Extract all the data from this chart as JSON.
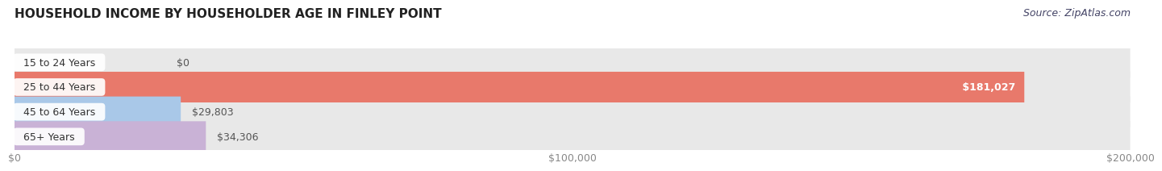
{
  "title": "HOUSEHOLD INCOME BY HOUSEHOLDER AGE IN FINLEY POINT",
  "source": "Source: ZipAtlas.com",
  "categories": [
    "15 to 24 Years",
    "25 to 44 Years",
    "45 to 64 Years",
    "65+ Years"
  ],
  "values": [
    0,
    181027,
    29803,
    34306
  ],
  "bar_colors": [
    "#f2c497",
    "#e8796b",
    "#a9c8e8",
    "#c9b2d6"
  ],
  "background_color": "#ffffff",
  "bar_bg_color": "#e8e8e8",
  "xlim": [
    0,
    200000
  ],
  "xticks": [
    0,
    100000,
    200000
  ],
  "xtick_labels": [
    "$0",
    "$100,000",
    "$200,000"
  ],
  "value_labels": [
    "$0",
    "$181,027",
    "$29,803",
    "$34,306"
  ],
  "title_fontsize": 11,
  "label_fontsize": 9,
  "tick_fontsize": 9,
  "source_fontsize": 9
}
